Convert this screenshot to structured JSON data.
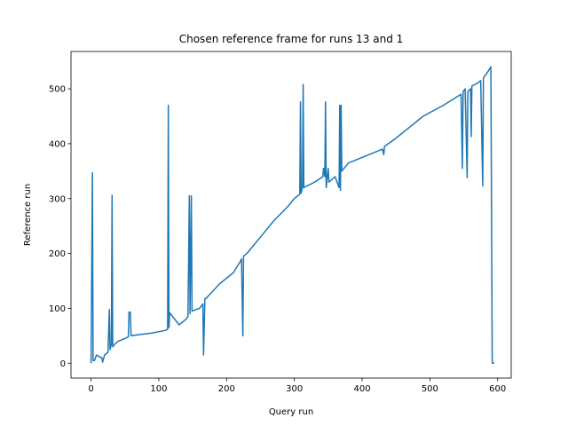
{
  "chart_data": {
    "type": "line",
    "title": "Chosen reference frame for runs 13 and 1",
    "xlabel": "Query run",
    "ylabel": "Reference run",
    "x": [
      0,
      2,
      3,
      5,
      8,
      12,
      16,
      17,
      20,
      25,
      27,
      28,
      30,
      31,
      32,
      35,
      40,
      50,
      55,
      56,
      58,
      59,
      70,
      90,
      110,
      113,
      114,
      115,
      116,
      130,
      140,
      143,
      145,
      146,
      148,
      149,
      160,
      165,
      166,
      168,
      170,
      171,
      190,
      210,
      220,
      222,
      224,
      225,
      230,
      250,
      270,
      290,
      300,
      308,
      309,
      310,
      312,
      313,
      314,
      330,
      342,
      343,
      345,
      346,
      347,
      350,
      351,
      360,
      366,
      367,
      368,
      369,
      370,
      380,
      410,
      430,
      432,
      433,
      450,
      490,
      520,
      546,
      548,
      549,
      552,
      555,
      556,
      560,
      561,
      562,
      570,
      575,
      578,
      579,
      585,
      590,
      592,
      595
    ],
    "y": [
      0,
      347,
      5,
      5,
      15,
      12,
      10,
      2,
      15,
      20,
      98,
      25,
      35,
      306,
      30,
      35,
      40,
      45,
      48,
      93,
      93,
      50,
      52,
      55,
      60,
      62,
      470,
      65,
      92,
      70,
      80,
      85,
      305,
      90,
      305,
      95,
      100,
      108,
      15,
      118,
      118,
      120,
      145,
      165,
      185,
      190,
      50,
      195,
      200,
      230,
      260,
      285,
      300,
      308,
      476,
      310,
      320,
      508,
      320,
      330,
      340,
      355,
      340,
      476,
      320,
      355,
      330,
      340,
      320,
      470,
      315,
      470,
      350,
      365,
      380,
      390,
      380,
      395,
      410,
      450,
      470,
      490,
      355,
      495,
      500,
      338,
      495,
      500,
      413,
      505,
      510,
      515,
      323,
      520,
      530,
      540,
      0,
      0
    ],
    "color": "#1f77b4",
    "xlim": [
      -29.6,
      620
    ],
    "ylim": [
      -27,
      568
    ],
    "xticks": [
      0,
      100,
      200,
      300,
      400,
      500,
      600
    ],
    "yticks": [
      0,
      100,
      200,
      300,
      400,
      500
    ]
  }
}
